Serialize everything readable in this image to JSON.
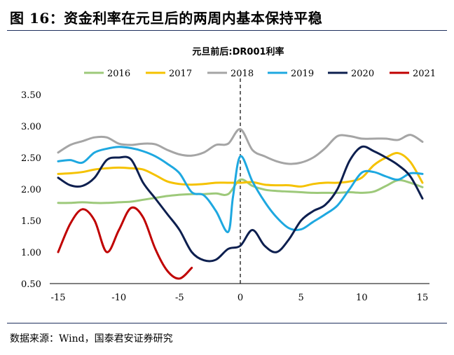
{
  "figure": {
    "title": "图 16：资金利率在元旦后的两周内基本保持平稳",
    "source": "数据来源：Wind，国泰君安证券研究"
  },
  "chart_data": {
    "type": "line",
    "title": "元旦前后:DR001利率",
    "xlim": [
      -15,
      15
    ],
    "ylim": [
      0.5,
      3.5
    ],
    "x_ticks": [
      -15,
      -10,
      -5,
      0,
      5,
      10,
      15
    ],
    "y_ticks": [
      0.5,
      1.0,
      1.5,
      2.0,
      2.5,
      3.0,
      3.5
    ],
    "x_tick_labels": [
      "-15",
      "-10",
      "-5",
      "0",
      "5",
      "10",
      "15"
    ],
    "y_tick_labels": [
      "0.50",
      "1.00",
      "1.50",
      "2.00",
      "2.50",
      "3.00",
      "3.50"
    ],
    "reference_line_x": 0,
    "legend_position": "top",
    "series": [
      {
        "name": "2016",
        "color": "#9dc97a",
        "points": [
          [
            -15,
            1.78
          ],
          [
            -14,
            1.78
          ],
          [
            -13,
            1.79
          ],
          [
            -12,
            1.78
          ],
          [
            -11,
            1.78
          ],
          [
            -10,
            1.79
          ],
          [
            -9,
            1.8
          ],
          [
            -8,
            1.83
          ],
          [
            -7,
            1.86
          ],
          [
            -6,
            1.89
          ],
          [
            -5,
            1.91
          ],
          [
            -4,
            1.92
          ],
          [
            -3,
            1.92
          ],
          [
            -2,
            1.93
          ],
          [
            -1,
            1.92
          ],
          [
            0,
            2.15
          ],
          [
            1,
            2.05
          ],
          [
            2,
            1.99
          ],
          [
            3,
            1.97
          ],
          [
            4,
            1.96
          ],
          [
            5,
            1.95
          ],
          [
            6,
            1.94
          ],
          [
            7,
            1.94
          ],
          [
            8,
            1.94
          ],
          [
            9,
            1.95
          ],
          [
            10,
            1.94
          ],
          [
            11,
            1.96
          ],
          [
            12,
            2.05
          ],
          [
            13,
            2.14
          ],
          [
            14,
            2.1
          ],
          [
            15,
            2.03
          ]
        ]
      },
      {
        "name": "2017",
        "color": "#f5c200",
        "points": [
          [
            -15,
            2.24
          ],
          [
            -14,
            2.25
          ],
          [
            -13,
            2.27
          ],
          [
            -12,
            2.31
          ],
          [
            -11,
            2.33
          ],
          [
            -10,
            2.34
          ],
          [
            -9,
            2.33
          ],
          [
            -8,
            2.31
          ],
          [
            -7,
            2.22
          ],
          [
            -6,
            2.12
          ],
          [
            -5,
            2.08
          ],
          [
            -4,
            2.07
          ],
          [
            -3,
            2.08
          ],
          [
            -2,
            2.1
          ],
          [
            -1,
            2.1
          ],
          [
            0,
            2.1
          ],
          [
            1,
            2.11
          ],
          [
            2,
            2.07
          ],
          [
            3,
            2.06
          ],
          [
            4,
            2.06
          ],
          [
            5,
            2.04
          ],
          [
            6,
            2.08
          ],
          [
            7,
            2.1
          ],
          [
            8,
            2.1
          ],
          [
            9,
            2.12
          ],
          [
            10,
            2.18
          ],
          [
            11,
            2.38
          ],
          [
            12,
            2.5
          ],
          [
            13,
            2.57
          ],
          [
            14,
            2.43
          ],
          [
            15,
            2.1
          ]
        ]
      },
      {
        "name": "2018",
        "color": "#a5a5a5",
        "points": [
          [
            -15,
            2.58
          ],
          [
            -14,
            2.7
          ],
          [
            -13,
            2.76
          ],
          [
            -12,
            2.82
          ],
          [
            -11,
            2.82
          ],
          [
            -10,
            2.72
          ],
          [
            -9,
            2.7
          ],
          [
            -8,
            2.72
          ],
          [
            -7,
            2.71
          ],
          [
            -6,
            2.62
          ],
          [
            -5,
            2.55
          ],
          [
            -4,
            2.53
          ],
          [
            -3,
            2.58
          ],
          [
            -2,
            2.7
          ],
          [
            -1,
            2.72
          ],
          [
            0,
            2.95
          ],
          [
            1,
            2.62
          ],
          [
            2,
            2.52
          ],
          [
            3,
            2.44
          ],
          [
            4,
            2.4
          ],
          [
            5,
            2.42
          ],
          [
            6,
            2.5
          ],
          [
            7,
            2.65
          ],
          [
            8,
            2.84
          ],
          [
            9,
            2.84
          ],
          [
            10,
            2.8
          ],
          [
            11,
            2.8
          ],
          [
            12,
            2.8
          ],
          [
            13,
            2.78
          ],
          [
            14,
            2.86
          ],
          [
            15,
            2.75
          ]
        ]
      },
      {
        "name": "2019",
        "color": "#1ea8e0",
        "points": [
          [
            -15,
            2.44
          ],
          [
            -14,
            2.46
          ],
          [
            -13,
            2.42
          ],
          [
            -12,
            2.58
          ],
          [
            -11,
            2.64
          ],
          [
            -10,
            2.67
          ],
          [
            -9,
            2.65
          ],
          [
            -8,
            2.6
          ],
          [
            -7,
            2.52
          ],
          [
            -6,
            2.4
          ],
          [
            -5,
            2.25
          ],
          [
            -4,
            1.95
          ],
          [
            -3,
            1.9
          ],
          [
            -2,
            1.65
          ],
          [
            -1,
            1.32
          ],
          [
            -0.6,
            1.88
          ],
          [
            0,
            2.52
          ],
          [
            1,
            2.12
          ],
          [
            2,
            1.8
          ],
          [
            3,
            1.55
          ],
          [
            4,
            1.38
          ],
          [
            5,
            1.36
          ],
          [
            6,
            1.48
          ],
          [
            7,
            1.6
          ],
          [
            8,
            1.74
          ],
          [
            9,
            2.0
          ],
          [
            10,
            2.26
          ],
          [
            11,
            2.27
          ],
          [
            12,
            2.2
          ],
          [
            13,
            2.15
          ],
          [
            14,
            2.25
          ],
          [
            15,
            2.24
          ]
        ]
      },
      {
        "name": "2020",
        "color": "#0d1f4f",
        "points": [
          [
            -15,
            2.18
          ],
          [
            -14,
            2.06
          ],
          [
            -13,
            2.05
          ],
          [
            -12,
            2.18
          ],
          [
            -11,
            2.46
          ],
          [
            -10,
            2.5
          ],
          [
            -9,
            2.47
          ],
          [
            -8,
            2.1
          ],
          [
            -7,
            1.85
          ],
          [
            -6,
            1.6
          ],
          [
            -5,
            1.35
          ],
          [
            -4,
            1.0
          ],
          [
            -3,
            0.87
          ],
          [
            -2,
            0.88
          ],
          [
            -1,
            1.05
          ],
          [
            0,
            1.1
          ],
          [
            1,
            1.35
          ],
          [
            2,
            1.1
          ],
          [
            3,
            1.0
          ],
          [
            4,
            1.2
          ],
          [
            5,
            1.5
          ],
          [
            6,
            1.65
          ],
          [
            7,
            1.75
          ],
          [
            8,
            2.0
          ],
          [
            9,
            2.45
          ],
          [
            10,
            2.67
          ],
          [
            11,
            2.6
          ],
          [
            12,
            2.5
          ],
          [
            13,
            2.38
          ],
          [
            14,
            2.2
          ],
          [
            15,
            1.85
          ]
        ]
      },
      {
        "name": "2021",
        "color": "#c00000",
        "points": [
          [
            -15,
            1.0
          ],
          [
            -14,
            1.45
          ],
          [
            -13,
            1.68
          ],
          [
            -12,
            1.5
          ],
          [
            -11,
            1.0
          ],
          [
            -10,
            1.35
          ],
          [
            -9,
            1.7
          ],
          [
            -8,
            1.55
          ],
          [
            -7,
            1.05
          ],
          [
            -6,
            0.7
          ],
          [
            -5,
            0.58
          ],
          [
            -4,
            0.75
          ]
        ]
      }
    ]
  }
}
